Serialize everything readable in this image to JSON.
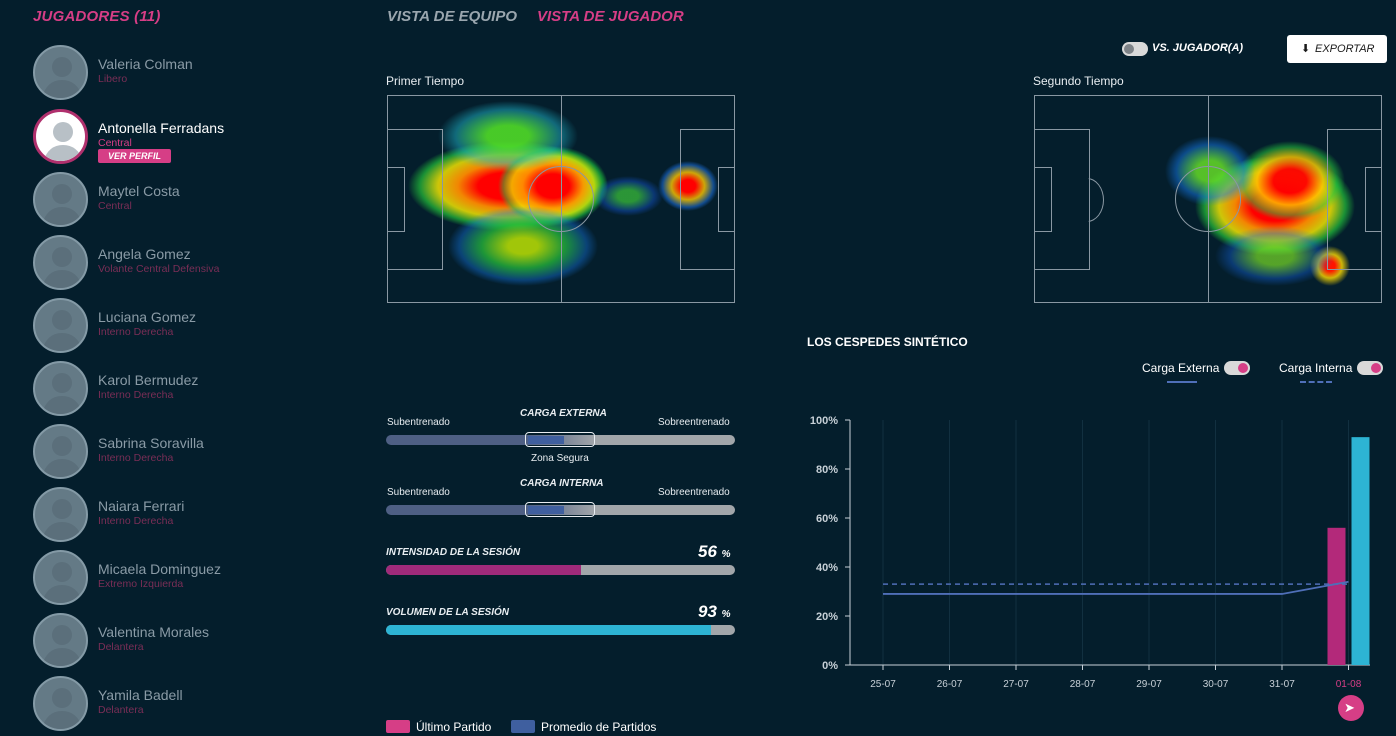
{
  "sidebar": {
    "title": "JUGADORES (11)",
    "ver_perfil": "VER PERFIL",
    "players": [
      {
        "name": "Valeria Colman",
        "role": "Libero"
      },
      {
        "name": "Antonella Ferradans",
        "role": "Central"
      },
      {
        "name": "Maytel Costa",
        "role": "Central"
      },
      {
        "name": "Angela Gomez",
        "role": "Volante Central Defensiva"
      },
      {
        "name": "Luciana Gomez",
        "role": "Interno Derecha"
      },
      {
        "name": "Karol Bermudez",
        "role": "Interno Derecha"
      },
      {
        "name": "Sabrina Soravilla",
        "role": "Interno Derecha"
      },
      {
        "name": "Naiara Ferrari",
        "role": "Interno Derecha"
      },
      {
        "name": "Micaela Dominguez",
        "role": "Extremo Izquierda"
      },
      {
        "name": "Valentina Morales",
        "role": "Delantera"
      },
      {
        "name": "Yamila Badell",
        "role": "Delantera"
      }
    ]
  },
  "tabs": {
    "team": "VISTA DE EQUIPO",
    "player": "VISTA DE JUGADOR"
  },
  "toolbar": {
    "vs_label": "VS. JUGADOR(A)",
    "export_label": "EXPORTAR"
  },
  "heatmaps": {
    "first": "Primer Tiempo",
    "second": "Segundo Tiempo"
  },
  "loads": {
    "under": "Subentrenado",
    "over": "Sobreentrenado",
    "external": "CARGA EXTERNA",
    "internal": "CARGA INTERNA",
    "safe_zone": "Zona Segura",
    "intensity_label": "INTENSIDAD DE LA SESIÓN",
    "intensity_value": "56",
    "volume_label": "VOLUMEN DE LA SESIÓN",
    "volume_value": "93",
    "percent": "%"
  },
  "legend": {
    "last": "Último Partido",
    "avg": "Promedio de Partidos"
  },
  "chart_title": "LOS CESPEDES SINTÉTICO",
  "chart_toggles": {
    "external": "Carga Externa",
    "internal": "Carga Interna"
  },
  "colors": {
    "accent": "#d63e86",
    "cyan": "#2db4d4",
    "blue": "#3f5f9f"
  },
  "chart_data": {
    "type": "bar",
    "categories": [
      "25-07",
      "26-07",
      "27-07",
      "28-07",
      "29-07",
      "30-07",
      "31-07",
      "01-08"
    ],
    "y_ticks": [
      "0%",
      "20%",
      "40%",
      "60%",
      "80%",
      "100%"
    ],
    "ylim": [
      0,
      100
    ],
    "series": [
      {
        "name": "Último Partido",
        "category": "01-08",
        "value": 56
      },
      {
        "name": "Volumen",
        "category": "01-08",
        "value": 93
      }
    ],
    "lines": {
      "carga_externa": [
        29,
        29,
        29,
        29,
        29,
        29,
        29,
        34
      ],
      "carga_interna": [
        33,
        33,
        33,
        33,
        33,
        33,
        33,
        33
      ]
    }
  }
}
